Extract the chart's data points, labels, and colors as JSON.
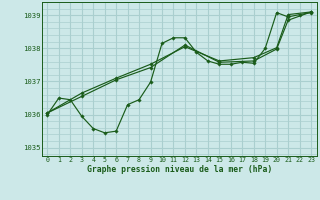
{
  "title": "Graphe pression niveau de la mer (hPa)",
  "bg_color": "#cce8e8",
  "grid_color": "#aacfcf",
  "line_color": "#1a5c1a",
  "marker_color": "#1a5c1a",
  "xlim": [
    -0.5,
    23.5
  ],
  "ylim": [
    1034.75,
    1039.4
  ],
  "xticks": [
    0,
    1,
    2,
    3,
    4,
    5,
    6,
    7,
    8,
    9,
    10,
    11,
    12,
    13,
    14,
    15,
    16,
    17,
    18,
    19,
    20,
    21,
    22,
    23
  ],
  "yticks": [
    1035,
    1036,
    1037,
    1038,
    1039
  ],
  "series1": {
    "x": [
      0,
      1,
      2,
      3,
      4,
      5,
      6,
      7,
      8,
      9,
      10,
      11,
      12,
      13,
      14,
      15,
      16,
      17,
      18,
      19,
      20,
      21,
      22,
      23
    ],
    "y": [
      1036.0,
      1036.5,
      1036.45,
      1035.95,
      1035.58,
      1035.45,
      1035.5,
      1036.3,
      1036.45,
      1036.98,
      1038.15,
      1038.32,
      1038.32,
      1037.88,
      1037.62,
      1037.52,
      1037.52,
      1037.58,
      1037.55,
      1038.0,
      1039.08,
      1038.95,
      1039.02,
      1039.08
    ]
  },
  "series2": {
    "x": [
      0,
      3,
      6,
      9,
      12,
      15,
      18,
      20,
      21,
      23
    ],
    "y": [
      1036.05,
      1036.65,
      1037.1,
      1037.52,
      1038.05,
      1037.62,
      1037.72,
      1038.02,
      1039.02,
      1039.1
    ]
  },
  "series3": {
    "x": [
      0,
      3,
      6,
      9,
      12,
      15,
      18,
      20,
      21,
      23
    ],
    "y": [
      1036.05,
      1036.55,
      1037.05,
      1037.42,
      1038.1,
      1037.58,
      1037.62,
      1037.98,
      1038.85,
      1039.1
    ]
  }
}
